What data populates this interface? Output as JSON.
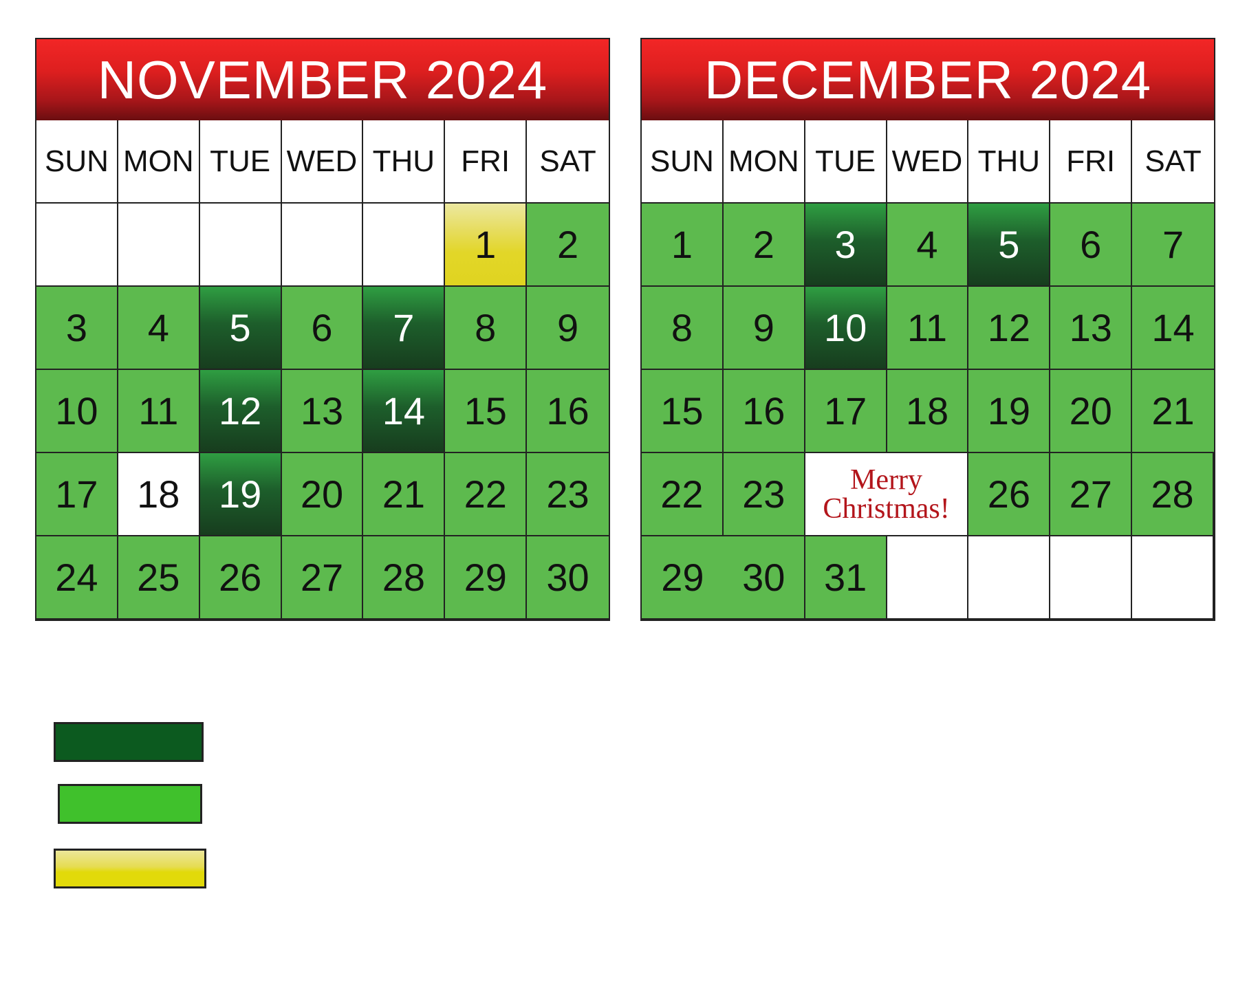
{
  "colors": {
    "header_red": "#dd1f1f",
    "day_green": "#5dba4e",
    "day_dark_green": "#1d5e2b",
    "day_yellow": "#e2d628",
    "merry_red": "#b3151b"
  },
  "weekdays": [
    "SUN",
    "MON",
    "TUE",
    "WED",
    "THU",
    "FRI",
    "SAT"
  ],
  "calendars": [
    {
      "title": "NOVEMBER 2024",
      "cells": [
        {
          "t": "",
          "s": "blank"
        },
        {
          "t": "",
          "s": "blank"
        },
        {
          "t": "",
          "s": "blank"
        },
        {
          "t": "",
          "s": "blank"
        },
        {
          "t": "",
          "s": "blank"
        },
        {
          "t": "1",
          "s": "yellow"
        },
        {
          "t": "2",
          "s": "green"
        },
        {
          "t": "3",
          "s": "green"
        },
        {
          "t": "4",
          "s": "green"
        },
        {
          "t": "5",
          "s": "dark"
        },
        {
          "t": "6",
          "s": "green"
        },
        {
          "t": "7",
          "s": "dark"
        },
        {
          "t": "8",
          "s": "green"
        },
        {
          "t": "9",
          "s": "green"
        },
        {
          "t": "10",
          "s": "green"
        },
        {
          "t": "11",
          "s": "green"
        },
        {
          "t": "12",
          "s": "dark"
        },
        {
          "t": "13",
          "s": "green"
        },
        {
          "t": "14",
          "s": "dark"
        },
        {
          "t": "15",
          "s": "green"
        },
        {
          "t": "16",
          "s": "green"
        },
        {
          "t": "17",
          "s": "green"
        },
        {
          "t": "18",
          "s": "white"
        },
        {
          "t": "19",
          "s": "dark"
        },
        {
          "t": "20",
          "s": "green"
        },
        {
          "t": "21",
          "s": "green"
        },
        {
          "t": "22",
          "s": "green"
        },
        {
          "t": "23",
          "s": "green"
        },
        {
          "t": "24",
          "s": "green"
        },
        {
          "t": "25",
          "s": "green"
        },
        {
          "t": "26",
          "s": "green"
        },
        {
          "t": "27",
          "s": "green"
        },
        {
          "t": "28",
          "s": "green"
        },
        {
          "t": "29",
          "s": "green"
        },
        {
          "t": "30",
          "s": "green"
        }
      ]
    },
    {
      "title": "DECEMBER 2024",
      "cells": [
        {
          "t": "1",
          "s": "green"
        },
        {
          "t": "2",
          "s": "green"
        },
        {
          "t": "3",
          "s": "dark"
        },
        {
          "t": "4",
          "s": "green"
        },
        {
          "t": "5",
          "s": "dark"
        },
        {
          "t": "6",
          "s": "green"
        },
        {
          "t": "7",
          "s": "green"
        },
        {
          "t": "8",
          "s": "green"
        },
        {
          "t": "9",
          "s": "green"
        },
        {
          "t": "10",
          "s": "dark"
        },
        {
          "t": "11",
          "s": "green"
        },
        {
          "t": "12",
          "s": "green"
        },
        {
          "t": "13",
          "s": "green"
        },
        {
          "t": "14",
          "s": "green"
        },
        {
          "t": "15",
          "s": "green"
        },
        {
          "t": "16",
          "s": "green"
        },
        {
          "t": "17",
          "s": "green"
        },
        {
          "t": "18",
          "s": "green"
        },
        {
          "t": "19",
          "s": "green"
        },
        {
          "t": "20",
          "s": "green"
        },
        {
          "t": "21",
          "s": "green"
        },
        {
          "t": "22",
          "s": "green"
        },
        {
          "t": "23",
          "s": "green"
        },
        {
          "t": "Merry|Christmas!",
          "s": "merry"
        },
        {
          "t": "26",
          "s": "green"
        },
        {
          "t": "27",
          "s": "green"
        },
        {
          "t": "28",
          "s": "green"
        },
        {
          "t": "29",
          "s": "green"
        },
        {
          "t": "30",
          "s": "green"
        },
        {
          "t": "31",
          "s": "green"
        },
        {
          "t": "",
          "s": "blank"
        },
        {
          "t": "",
          "s": "blank"
        },
        {
          "t": "",
          "s": "blank"
        },
        {
          "t": "",
          "s": "blank"
        }
      ]
    }
  ],
  "legend": [
    {
      "color": "#0c5a1f"
    },
    {
      "color": "#40c12c"
    },
    {
      "color": "#e2da0a"
    }
  ]
}
